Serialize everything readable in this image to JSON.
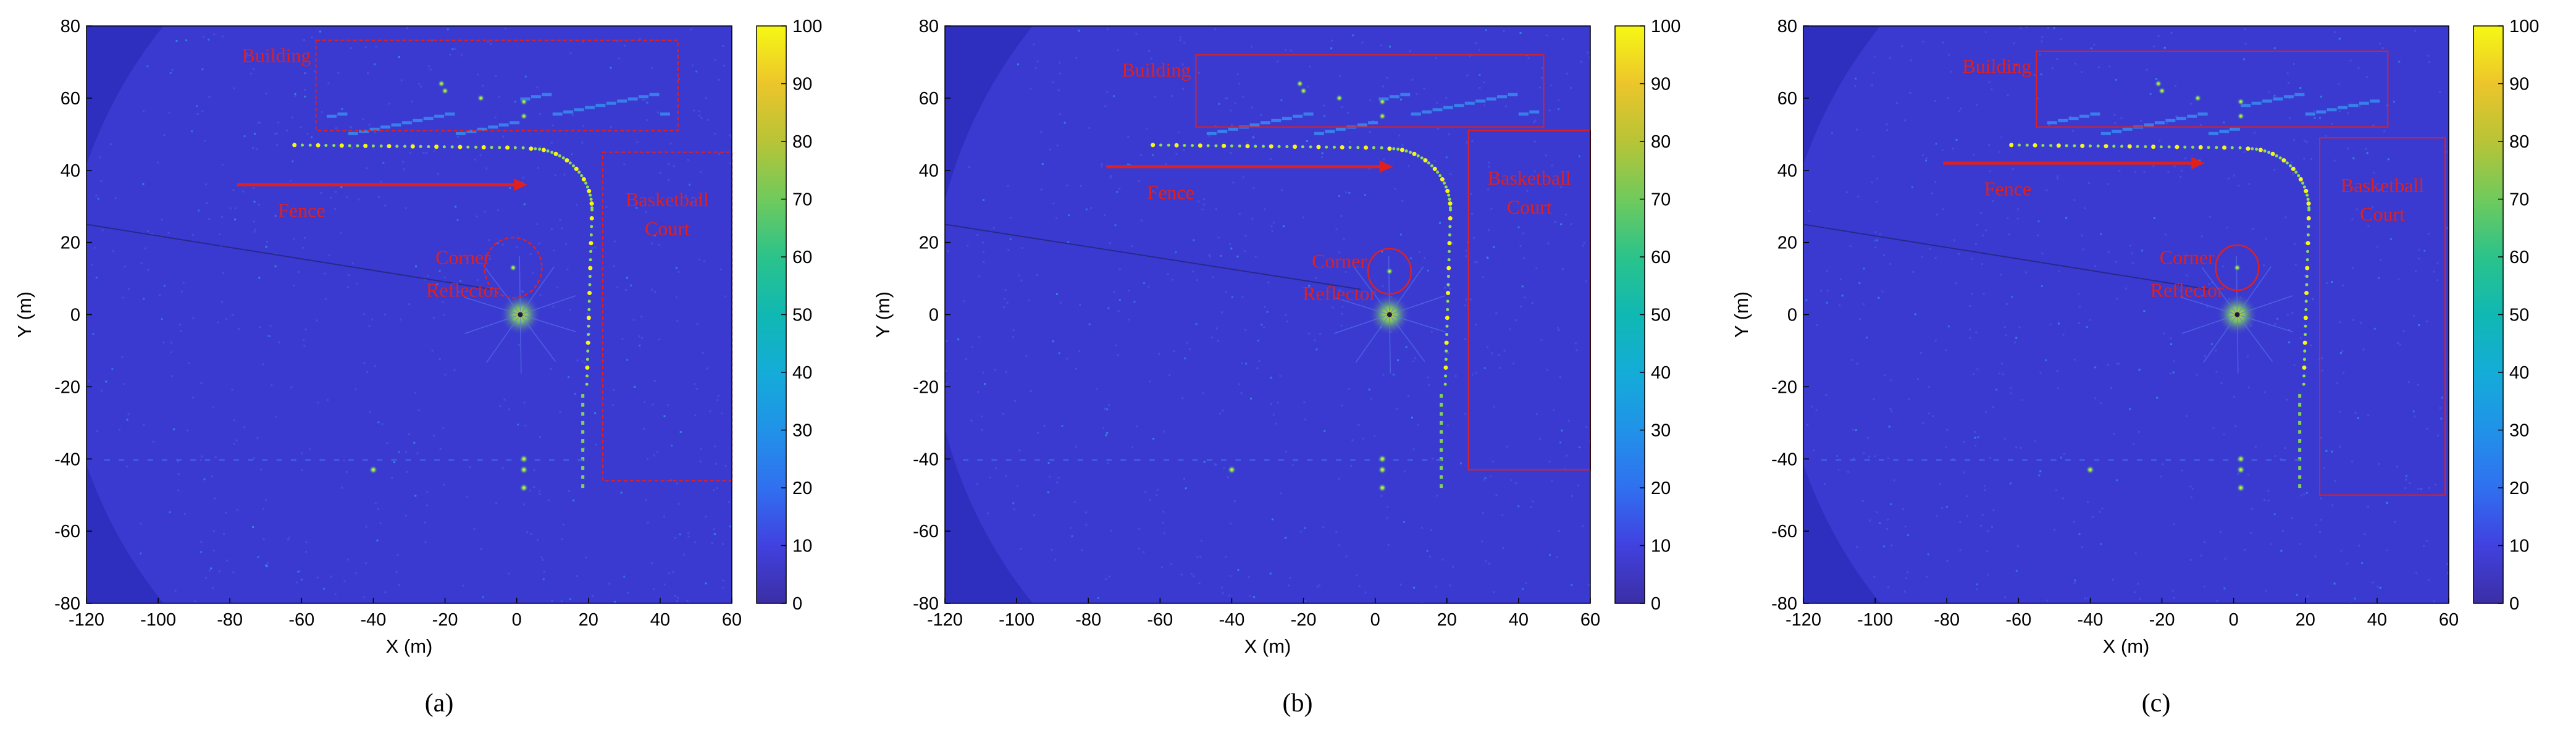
{
  "figure": {
    "colors": {
      "background": "#2f2fbf",
      "field": "#3a3ad0",
      "annotation": "#e0201e"
    }
  },
  "chart_data": [
    {
      "type": "heatmap",
      "panel": "a",
      "caption": "(a)",
      "xlabel": "X (m)",
      "ylabel": "Y (m)",
      "xlim": [
        -120,
        60
      ],
      "ylim": [
        -80,
        80
      ],
      "xticks": [
        -120,
        -100,
        -80,
        -60,
        -40,
        -20,
        0,
        20,
        40,
        60
      ],
      "yticks": [
        80,
        60,
        40,
        20,
        0,
        -20,
        -40,
        -60,
        -80
      ],
      "colorbar": {
        "range": [
          0,
          100
        ],
        "ticks": [
          100,
          90,
          80,
          70,
          60,
          50,
          40,
          30,
          20,
          10,
          0
        ]
      },
      "annotations": {
        "building": "Building",
        "fence": "Fence",
        "corner": [
          "Corner",
          "Reflector"
        ],
        "court": [
          "Basketball",
          "Court"
        ]
      },
      "regions": {
        "building_box": {
          "x": [
            -56,
            45
          ],
          "y": [
            51,
            76
          ]
        },
        "court_box": {
          "x": [
            24,
            60
          ],
          "y": [
            -46,
            45
          ]
        },
        "fence_arrow": {
          "x": [
            -78,
            3
          ],
          "y": [
            36,
            36
          ]
        },
        "reflector_circle": {
          "cx": -1,
          "cy": 13,
          "r": 8
        },
        "radar_origin": {
          "x": 1,
          "y": 0
        }
      }
    },
    {
      "type": "heatmap",
      "panel": "b",
      "caption": "(b)",
      "xlabel": "X (m)",
      "ylabel": "Y (m)",
      "xlim": [
        -120,
        60
      ],
      "ylim": [
        -80,
        80
      ],
      "xticks": [
        -120,
        -100,
        -80,
        -60,
        -40,
        -20,
        0,
        20,
        40,
        60
      ],
      "yticks": [
        80,
        60,
        40,
        20,
        0,
        -20,
        -40,
        -60,
        -80
      ],
      "colorbar": {
        "range": [
          0,
          100
        ],
        "ticks": [
          100,
          90,
          80,
          70,
          60,
          50,
          40,
          30,
          20,
          10,
          0
        ]
      },
      "annotations": {
        "building": "Building",
        "fence": "Fence",
        "corner": [
          "Corner",
          "Reflector"
        ],
        "court": [
          "Basketball",
          "Court"
        ]
      },
      "regions": {
        "building_box": {
          "x": [
            -50,
            47
          ],
          "y": [
            52,
            72
          ]
        },
        "court_box": {
          "x": [
            26,
            63
          ],
          "y": [
            -43,
            51
          ]
        },
        "fence_arrow": {
          "x": [
            -75,
            5
          ],
          "y": [
            41,
            41
          ]
        },
        "reflector_circle": {
          "cx": 4,
          "cy": 12,
          "r": 6
        },
        "radar_origin": {
          "x": 4,
          "y": 0
        }
      }
    },
    {
      "type": "heatmap",
      "panel": "c",
      "caption": "(c)",
      "xlabel": "X (m)",
      "ylabel": "Y (m)",
      "xlim": [
        -120,
        60
      ],
      "ylim": [
        -80,
        80
      ],
      "xticks": [
        -120,
        -100,
        -80,
        -60,
        -40,
        -20,
        0,
        20,
        40,
        60
      ],
      "yticks": [
        80,
        60,
        40,
        20,
        0,
        -20,
        -40,
        -60,
        -80
      ],
      "colorbar": {
        "range": [
          0,
          100
        ],
        "ticks": [
          100,
          90,
          80,
          70,
          60,
          50,
          40,
          30,
          20,
          10,
          0
        ]
      },
      "annotations": {
        "building": "Building",
        "fence": "Fence",
        "corner": [
          "Corner",
          "Reflector"
        ],
        "court": [
          "Basketball",
          "Court"
        ]
      },
      "regions": {
        "building_box": {
          "x": [
            -55,
            43
          ],
          "y": [
            52,
            73
          ]
        },
        "court_box": {
          "x": [
            24,
            59
          ],
          "y": [
            -50,
            49
          ]
        },
        "fence_arrow": {
          "x": [
            -81,
            -8
          ],
          "y": [
            42,
            42
          ]
        },
        "reflector_circle": {
          "cx": 1,
          "cy": 13,
          "r": 6
        },
        "radar_origin": {
          "x": 1,
          "y": 0
        }
      }
    }
  ]
}
